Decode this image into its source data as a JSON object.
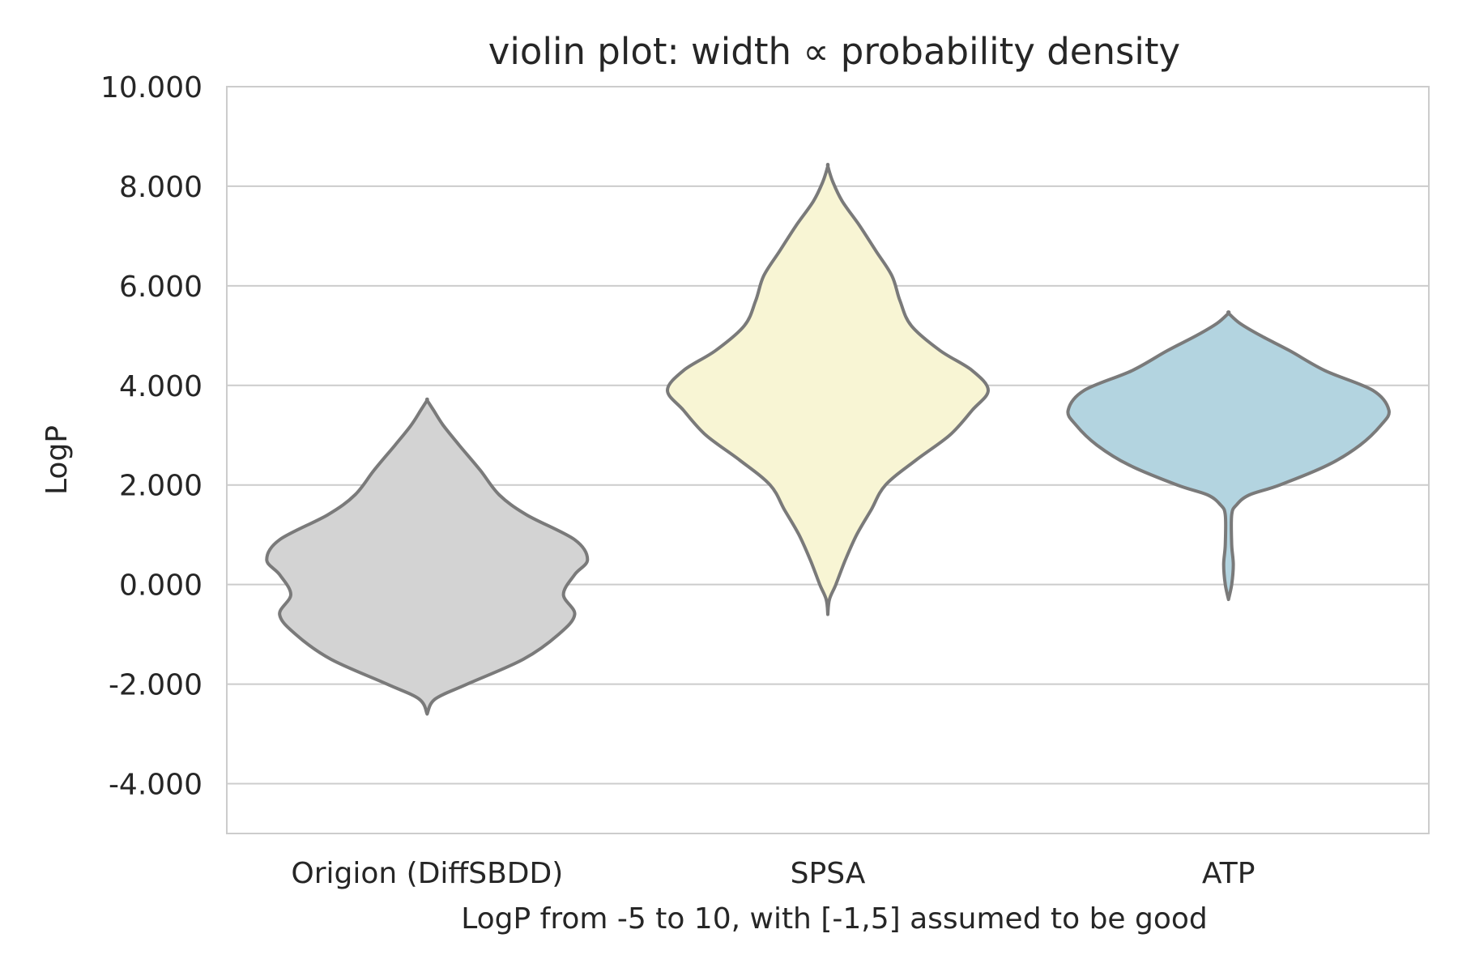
{
  "chart_data": {
    "type": "violin",
    "title": "violin plot: width ∝ probability density",
    "xlabel": "LogP from -5 to 10, with [-1,5] assumed to be good",
    "ylabel": "LogP",
    "ylim": [
      -5,
      10
    ],
    "yticks": [
      -4,
      -2,
      0,
      2,
      4,
      6,
      8,
      10
    ],
    "ytick_labels": [
      "-4.000",
      "-2.000",
      "0.000",
      "2.000",
      "4.000",
      "6.000",
      "8.000",
      "10.000"
    ],
    "grid": "horizontal",
    "series": [
      {
        "category": "Origion (DiffSBDD)",
        "color": "#d3d3d3",
        "min": -2.6,
        "max": 3.7,
        "profile": [
          [
            -2.6,
            0.0
          ],
          [
            -2.3,
            0.05
          ],
          [
            -2.0,
            0.25
          ],
          [
            -1.5,
            0.6
          ],
          [
            -1.0,
            0.82
          ],
          [
            -0.6,
            0.92
          ],
          [
            -0.2,
            0.85
          ],
          [
            0.2,
            0.92
          ],
          [
            0.5,
            1.0
          ],
          [
            0.9,
            0.92
          ],
          [
            1.4,
            0.62
          ],
          [
            1.8,
            0.45
          ],
          [
            2.3,
            0.33
          ],
          [
            2.8,
            0.2
          ],
          [
            3.2,
            0.1
          ],
          [
            3.5,
            0.04
          ],
          [
            3.7,
            0.0
          ]
        ]
      },
      {
        "category": "SPSA",
        "color": "#f8f5d4",
        "min": -0.6,
        "max": 8.4,
        "profile": [
          [
            -0.6,
            0.0
          ],
          [
            -0.3,
            0.01
          ],
          [
            0.0,
            0.05
          ],
          [
            0.5,
            0.11
          ],
          [
            1.0,
            0.18
          ],
          [
            1.5,
            0.27
          ],
          [
            2.0,
            0.36
          ],
          [
            2.5,
            0.55
          ],
          [
            3.0,
            0.76
          ],
          [
            3.5,
            0.9
          ],
          [
            3.9,
            1.0
          ],
          [
            4.3,
            0.9
          ],
          [
            4.7,
            0.7
          ],
          [
            5.2,
            0.52
          ],
          [
            5.7,
            0.45
          ],
          [
            6.2,
            0.4
          ],
          [
            6.7,
            0.3
          ],
          [
            7.2,
            0.2
          ],
          [
            7.7,
            0.09
          ],
          [
            8.1,
            0.03
          ],
          [
            8.4,
            0.0
          ]
        ]
      },
      {
        "category": "ATP",
        "color": "#b3d4e0",
        "min": -0.3,
        "max": 5.45,
        "profile": [
          [
            -0.3,
            0.0
          ],
          [
            0.0,
            0.02
          ],
          [
            0.4,
            0.03
          ],
          [
            0.8,
            0.02
          ],
          [
            1.4,
            0.02
          ],
          [
            1.6,
            0.05
          ],
          [
            1.8,
            0.13
          ],
          [
            2.0,
            0.32
          ],
          [
            2.4,
            0.62
          ],
          [
            2.8,
            0.82
          ],
          [
            3.2,
            0.95
          ],
          [
            3.5,
            1.0
          ],
          [
            3.9,
            0.9
          ],
          [
            4.3,
            0.6
          ],
          [
            4.7,
            0.38
          ],
          [
            5.0,
            0.2
          ],
          [
            5.25,
            0.07
          ],
          [
            5.45,
            0.0
          ]
        ]
      }
    ]
  }
}
